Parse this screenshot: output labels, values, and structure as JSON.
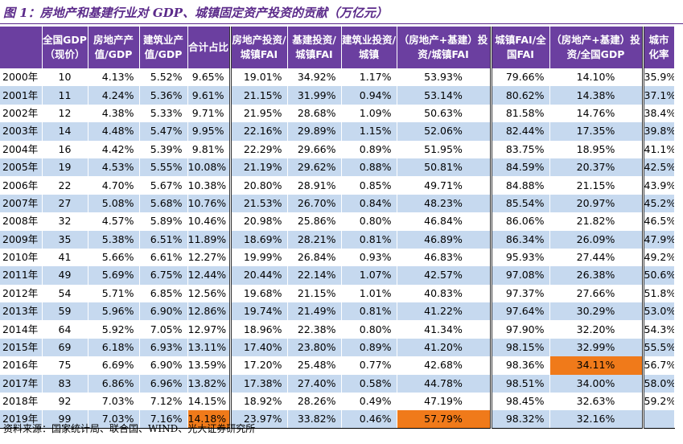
{
  "title": "图 1：房地产和基建行业对 GDP、城镇固定资产投资的贡献（万亿元）",
  "headers": [
    "",
    "全国GDP（现价）",
    "房地产产值/GDP",
    "建筑业产值/GDP",
    "合计占比",
    "房地产投资/城镇FAI",
    "基建投资/城镇FAI",
    "建筑业投资/城镇",
    "（房地产+基建）投资/城镇FAI",
    "城镇FAI/全国FAI",
    "（房地产+基建）投资/全国GDP",
    "城市化率"
  ],
  "rows": [
    [
      "2000年",
      "10",
      "4.13%",
      "5.52%",
      "9.65%",
      "19.01%",
      "34.92%",
      "1.17%",
      "53.93%",
      "79.66%",
      "14.10%",
      "35.9%"
    ],
    [
      "2001年",
      "11",
      "4.24%",
      "5.36%",
      "9.61%",
      "21.15%",
      "31.99%",
      "0.94%",
      "53.14%",
      "80.62%",
      "14.38%",
      "37.1%"
    ],
    [
      "2002年",
      "12",
      "4.38%",
      "5.33%",
      "9.71%",
      "21.95%",
      "28.68%",
      "1.09%",
      "50.63%",
      "81.58%",
      "14.76%",
      "38.4%"
    ],
    [
      "2003年",
      "14",
      "4.48%",
      "5.47%",
      "9.95%",
      "22.16%",
      "29.89%",
      "1.15%",
      "52.06%",
      "82.44%",
      "17.35%",
      "39.8%"
    ],
    [
      "2004年",
      "16",
      "4.42%",
      "5.39%",
      "9.81%",
      "22.29%",
      "29.66%",
      "0.89%",
      "51.95%",
      "83.75%",
      "18.95%",
      "41.1%"
    ],
    [
      "2005年",
      "19",
      "4.53%",
      "5.55%",
      "10.08%",
      "21.19%",
      "29.62%",
      "0.88%",
      "50.81%",
      "84.59%",
      "20.37%",
      "42.5%"
    ],
    [
      "2006年",
      "22",
      "4.70%",
      "5.67%",
      "10.38%",
      "20.80%",
      "28.91%",
      "0.85%",
      "49.71%",
      "84.88%",
      "21.15%",
      "43.9%"
    ],
    [
      "2007年",
      "27",
      "5.08%",
      "5.68%",
      "10.76%",
      "21.53%",
      "26.70%",
      "0.84%",
      "48.23%",
      "85.54%",
      "20.97%",
      "45.2%"
    ],
    [
      "2008年",
      "32",
      "4.57%",
      "5.89%",
      "10.46%",
      "20.98%",
      "25.86%",
      "0.80%",
      "46.84%",
      "86.06%",
      "21.82%",
      "46.5%"
    ],
    [
      "2009年",
      "35",
      "5.38%",
      "6.51%",
      "11.89%",
      "18.69%",
      "28.21%",
      "0.81%",
      "46.89%",
      "86.34%",
      "26.09%",
      "47.9%"
    ],
    [
      "2010年",
      "41",
      "5.66%",
      "6.61%",
      "12.27%",
      "19.99%",
      "26.84%",
      "0.93%",
      "46.83%",
      "95.93%",
      "27.44%",
      "49.2%"
    ],
    [
      "2011年",
      "49",
      "5.69%",
      "6.75%",
      "12.44%",
      "20.44%",
      "22.14%",
      "1.07%",
      "42.57%",
      "97.08%",
      "26.38%",
      "50.6%"
    ],
    [
      "2012年",
      "54",
      "5.71%",
      "6.85%",
      "12.56%",
      "19.68%",
      "21.15%",
      "1.01%",
      "40.83%",
      "97.37%",
      "27.66%",
      "51.8%"
    ],
    [
      "2013年",
      "59",
      "5.96%",
      "6.90%",
      "12.86%",
      "19.74%",
      "21.49%",
      "0.81%",
      "41.22%",
      "97.64%",
      "30.29%",
      "53.0%"
    ],
    [
      "2014年",
      "64",
      "5.92%",
      "7.05%",
      "12.97%",
      "18.96%",
      "22.38%",
      "0.80%",
      "41.34%",
      "97.90%",
      "32.20%",
      "54.3%"
    ],
    [
      "2015年",
      "69",
      "6.18%",
      "6.93%",
      "13.11%",
      "17.40%",
      "23.80%",
      "0.89%",
      "41.20%",
      "98.15%",
      "32.99%",
      "55.5%"
    ],
    [
      "2016年",
      "75",
      "6.69%",
      "6.90%",
      "13.59%",
      "17.20%",
      "25.48%",
      "0.77%",
      "42.68%",
      "98.36%",
      "34.11%",
      "56.7%"
    ],
    [
      "2017年",
      "83",
      "6.86%",
      "6.96%",
      "13.82%",
      "17.38%",
      "27.40%",
      "0.58%",
      "44.78%",
      "98.51%",
      "34.00%",
      "58.0%"
    ],
    [
      "2018年",
      "92",
      "7.03%",
      "7.12%",
      "14.15%",
      "18.92%",
      "28.26%",
      "0.49%",
      "47.19%",
      "98.45%",
      "32.63%",
      "59.2%"
    ],
    [
      "2019年",
      "99",
      "7.03%",
      "7.16%",
      "14.18%",
      "23.97%",
      "33.82%",
      "0.46%",
      "57.79%",
      "98.32%",
      "32.16%",
      ""
    ]
  ],
  "highlight_color": "#f07a1a",
  "source": "资料来源：国家统计局、联合国、WIND、光大证券研究所"
}
